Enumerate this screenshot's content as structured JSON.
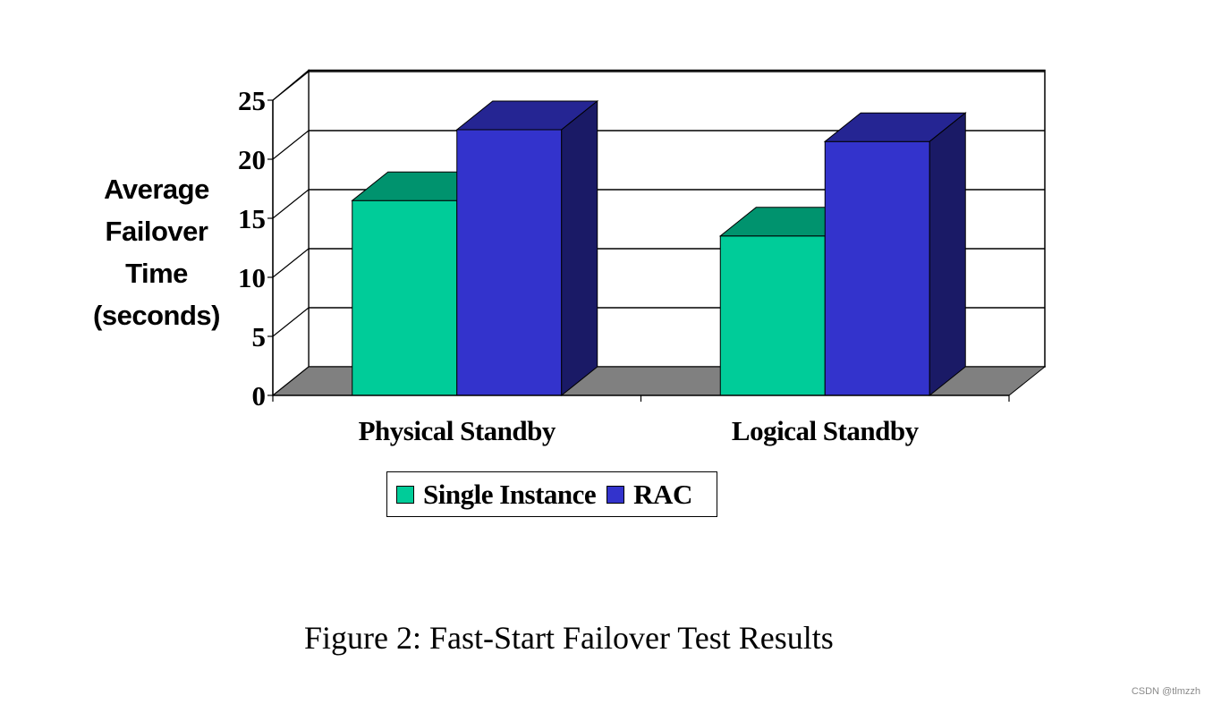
{
  "chart_data": {
    "type": "bar",
    "categories": [
      "Physical Standby",
      "Logical Standby"
    ],
    "series": [
      {
        "name": "Single Instance",
        "values": [
          16.5,
          13.5
        ],
        "color": "#00CC99"
      },
      {
        "name": "RAC",
        "values": [
          22.5,
          21.5
        ],
        "color": "#3333CC"
      }
    ],
    "ylabel_lines": [
      "Average",
      "Failover",
      "Time",
      "(seconds)"
    ],
    "yticks": [
      "0",
      "5",
      "10",
      "15",
      "20",
      "25"
    ],
    "ylim": [
      0,
      25
    ],
    "grid": true,
    "legend_position": "bottom",
    "style": "3d"
  },
  "caption": "Figure 2:  Fast-Start Failover Test Results",
  "watermark": "CSDN @tlmzzh"
}
